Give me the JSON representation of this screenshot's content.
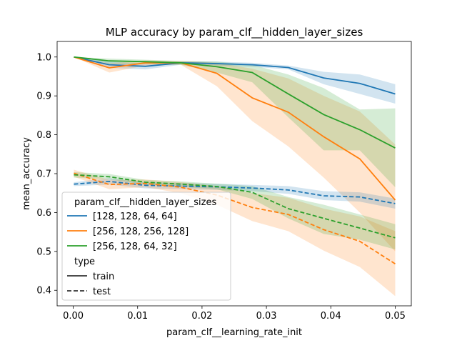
{
  "chart_data": {
    "type": "line",
    "title": "MLP accuracy by param_clf__hidden_layer_sizes",
    "xlabel": "param_clf__learning_rate_init",
    "ylabel": "mean_accuracy",
    "xlim": [
      -0.0025,
      0.0525
    ],
    "ylim": [
      0.36,
      1.04
    ],
    "xticks": [
      0.0,
      0.01,
      0.02,
      0.03,
      0.04,
      0.05
    ],
    "xtick_labels": [
      "0.00",
      "0.01",
      "0.02",
      "0.03",
      "0.04",
      "0.05"
    ],
    "yticks": [
      0.4,
      0.5,
      0.6,
      0.7,
      0.8,
      0.9,
      1.0
    ],
    "ytick_labels": [
      "0.4",
      "0.5",
      "0.6",
      "0.7",
      "0.8",
      "0.9",
      "1.0"
    ],
    "x": [
      0.0001,
      0.0056,
      0.0112,
      0.0167,
      0.0223,
      0.0278,
      0.0334,
      0.0389,
      0.0445,
      0.05
    ],
    "grid": false,
    "legend": {
      "placement": "lower-left",
      "hue_title": "param_clf__hidden_layer_sizes",
      "style_title": "type",
      "style_entries": [
        {
          "label": "train",
          "dash": "solid"
        },
        {
          "label": "test",
          "dash": "dashed"
        }
      ]
    },
    "series": [
      {
        "name": "[128, 128, 64, 64]",
        "type": "train",
        "color": "#1f77b4",
        "values": [
          1.0,
          0.98,
          0.976,
          0.985,
          0.983,
          0.98,
          0.973,
          0.946,
          0.932,
          0.905
        ],
        "lower": [
          1.0,
          0.972,
          0.968,
          0.98,
          0.978,
          0.975,
          0.968,
          0.93,
          0.905,
          0.88
        ],
        "upper": [
          1.0,
          0.988,
          0.983,
          0.989,
          0.988,
          0.985,
          0.978,
          0.962,
          0.955,
          0.93
        ]
      },
      {
        "name": "[256, 128, 256, 128]",
        "type": "train",
        "color": "#ff7f0e",
        "values": [
          1.0,
          0.972,
          0.985,
          0.985,
          0.958,
          0.895,
          0.858,
          0.795,
          0.738,
          0.632
        ],
        "lower": [
          1.0,
          0.96,
          0.978,
          0.98,
          0.925,
          0.835,
          0.77,
          0.69,
          0.6,
          0.5
        ],
        "upper": [
          1.0,
          0.984,
          0.991,
          0.99,
          0.985,
          0.97,
          0.945,
          0.9,
          0.86,
          0.775
        ]
      },
      {
        "name": "[256, 128, 64, 32]",
        "type": "train",
        "color": "#2ca02c",
        "values": [
          1.0,
          0.99,
          0.988,
          0.985,
          0.975,
          0.96,
          0.905,
          0.852,
          0.813,
          0.766
        ],
        "lower": [
          1.0,
          0.983,
          0.982,
          0.98,
          0.96,
          0.935,
          0.845,
          0.76,
          0.76,
          0.665
        ],
        "upper": [
          1.0,
          0.996,
          0.993,
          0.99,
          0.988,
          0.98,
          0.955,
          0.92,
          0.865,
          0.868
        ]
      },
      {
        "name": "[128, 128, 64, 64]",
        "type": "test",
        "color": "#1f77b4",
        "values": [
          0.673,
          0.68,
          0.67,
          0.668,
          0.666,
          0.663,
          0.658,
          0.643,
          0.64,
          0.623
        ],
        "lower": [
          0.668,
          0.672,
          0.662,
          0.66,
          0.658,
          0.655,
          0.648,
          0.632,
          0.628,
          0.61
        ],
        "upper": [
          0.678,
          0.688,
          0.678,
          0.676,
          0.674,
          0.671,
          0.668,
          0.655,
          0.652,
          0.636
        ]
      },
      {
        "name": "[256, 128, 256, 128]",
        "type": "test",
        "color": "#ff7f0e",
        "values": [
          0.701,
          0.672,
          0.675,
          0.665,
          0.645,
          0.613,
          0.595,
          0.556,
          0.526,
          0.468
        ],
        "lower": [
          0.692,
          0.66,
          0.665,
          0.65,
          0.62,
          0.578,
          0.552,
          0.502,
          0.46,
          0.385
        ],
        "upper": [
          0.71,
          0.684,
          0.685,
          0.678,
          0.668,
          0.65,
          0.638,
          0.61,
          0.59,
          0.552
        ]
      },
      {
        "name": "[256, 128, 64, 32]",
        "type": "test",
        "color": "#2ca02c",
        "values": [
          0.697,
          0.692,
          0.678,
          0.673,
          0.667,
          0.652,
          0.61,
          0.585,
          0.56,
          0.535
        ],
        "lower": [
          0.69,
          0.685,
          0.672,
          0.666,
          0.66,
          0.635,
          0.585,
          0.545,
          0.53,
          0.505
        ],
        "upper": [
          0.704,
          0.699,
          0.684,
          0.68,
          0.674,
          0.668,
          0.64,
          0.62,
          0.595,
          0.57
        ]
      }
    ]
  }
}
